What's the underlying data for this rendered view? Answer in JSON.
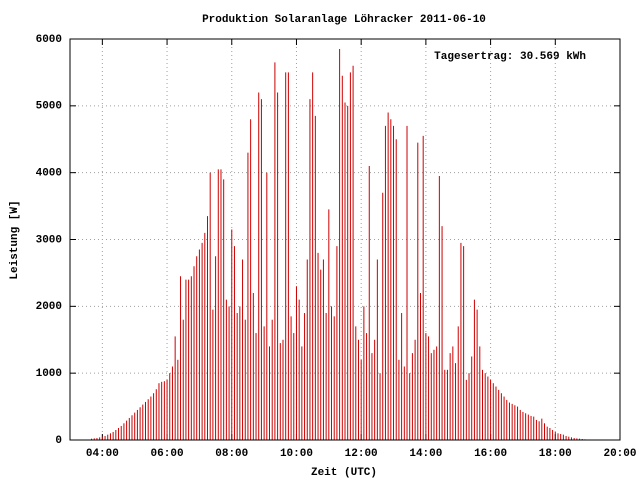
{
  "chart_data": {
    "type": "impulse",
    "title": "Produktion Solaranlage Löhracker 2011-06-10",
    "annotation": "Tagesertrag: 30.569 kWh",
    "xlabel": "Zeit (UTC)",
    "ylabel": "Leistung [W]",
    "color": "#cc0000",
    "grid": true,
    "xlim": [
      "03:00",
      "20:00"
    ],
    "xticks": [
      "04:00",
      "06:00",
      "08:00",
      "10:00",
      "12:00",
      "14:00",
      "16:00",
      "18:00",
      "20:00"
    ],
    "ylim": [
      0,
      6000
    ],
    "yticks": [
      0,
      1000,
      2000,
      3000,
      4000,
      5000,
      6000
    ],
    "x": [
      "03:40",
      "03:45",
      "03:50",
      "03:55",
      "04:00",
      "04:05",
      "04:10",
      "04:15",
      "04:20",
      "04:25",
      "04:30",
      "04:35",
      "04:40",
      "04:45",
      "04:50",
      "04:55",
      "05:00",
      "05:05",
      "05:10",
      "05:15",
      "05:20",
      "05:25",
      "05:30",
      "05:35",
      "05:40",
      "05:45",
      "05:50",
      "05:55",
      "06:00",
      "06:05",
      "06:10",
      "06:15",
      "06:20",
      "06:25",
      "06:30",
      "06:35",
      "06:40",
      "06:45",
      "06:50",
      "06:55",
      "07:00",
      "07:05",
      "07:10",
      "07:15",
      "07:20",
      "07:25",
      "07:30",
      "07:35",
      "07:40",
      "07:45",
      "07:50",
      "07:55",
      "08:00",
      "08:05",
      "08:10",
      "08:15",
      "08:20",
      "08:25",
      "08:30",
      "08:35",
      "08:40",
      "08:45",
      "08:50",
      "08:55",
      "09:00",
      "09:05",
      "09:10",
      "09:15",
      "09:20",
      "09:25",
      "09:30",
      "09:35",
      "09:40",
      "09:45",
      "09:50",
      "09:55",
      "10:00",
      "10:05",
      "10:10",
      "10:15",
      "10:20",
      "10:25",
      "10:30",
      "10:35",
      "10:40",
      "10:45",
      "10:50",
      "10:55",
      "11:00",
      "11:05",
      "11:10",
      "11:15",
      "11:20",
      "11:25",
      "11:30",
      "11:35",
      "11:40",
      "11:45",
      "11:50",
      "11:55",
      "12:00",
      "12:05",
      "12:10",
      "12:15",
      "12:20",
      "12:25",
      "12:30",
      "12:35",
      "12:40",
      "12:45",
      "12:50",
      "12:55",
      "13:00",
      "13:05",
      "13:10",
      "13:15",
      "13:20",
      "13:25",
      "13:30",
      "13:35",
      "13:40",
      "13:45",
      "13:50",
      "13:55",
      "14:00",
      "14:05",
      "14:10",
      "14:15",
      "14:20",
      "14:25",
      "14:30",
      "14:35",
      "14:40",
      "14:45",
      "14:50",
      "14:55",
      "15:00",
      "15:05",
      "15:10",
      "15:15",
      "15:20",
      "15:25",
      "15:30",
      "15:35",
      "15:40",
      "15:45",
      "15:50",
      "15:55",
      "16:00",
      "16:05",
      "16:10",
      "16:15",
      "16:20",
      "16:25",
      "16:30",
      "16:35",
      "16:40",
      "16:45",
      "16:50",
      "16:55",
      "17:00",
      "17:05",
      "17:10",
      "17:15",
      "17:20",
      "17:25",
      "17:30",
      "17:35",
      "17:40",
      "17:45",
      "17:50",
      "17:55",
      "18:00",
      "18:05",
      "18:10",
      "18:15",
      "18:20",
      "18:25",
      "18:30",
      "18:35",
      "18:40",
      "18:45",
      "18:50",
      "18:55",
      "19:00",
      "19:05"
    ],
    "values": [
      20,
      25,
      30,
      40,
      50,
      60,
      80,
      100,
      120,
      150,
      180,
      210,
      250,
      290,
      330,
      370,
      410,
      450,
      490,
      530,
      570,
      610,
      650,
      700,
      760,
      850,
      870,
      880,
      900,
      1000,
      1100,
      1550,
      1200,
      2450,
      1800,
      2400,
      2400,
      2450,
      2600,
      2750,
      2850,
      2950,
      3100,
      3350,
      4000,
      1950,
      2750,
      4050,
      4050,
      3900,
      2100,
      2000,
      3150,
      2900,
      1900,
      2000,
      2700,
      1800,
      4300,
      4800,
      2200,
      1600,
      5200,
      5100,
      1700,
      4000,
      1400,
      1800,
      5650,
      5200,
      1450,
      1500,
      5500,
      5500,
      1850,
      1600,
      2300,
      2100,
      1400,
      1900,
      2700,
      5100,
      5500,
      4850,
      2800,
      2550,
      2700,
      1900,
      3450,
      2000,
      1850,
      2900,
      5850,
      5450,
      5050,
      5000,
      5500,
      5600,
      1700,
      1500,
      1200,
      2000,
      1600,
      4100,
      1300,
      1500,
      2700,
      1000,
      3700,
      4700,
      4900,
      4800,
      4700,
      4500,
      1200,
      1900,
      1100,
      4700,
      1000,
      1300,
      1500,
      4450,
      2200,
      4550,
      1600,
      1550,
      1300,
      1350,
      1400,
      3950,
      3200,
      1050,
      1050,
      1300,
      1400,
      1150,
      1700,
      2950,
      2900,
      900,
      1000,
      1250,
      2100,
      1950,
      1400,
      1050,
      1000,
      950,
      900,
      850,
      800,
      750,
      700,
      650,
      600,
      560,
      540,
      520,
      500,
      450,
      420,
      400,
      380,
      360,
      350,
      300,
      280,
      320,
      250,
      200,
      180,
      150,
      120,
      100,
      90,
      80,
      60,
      50,
      40,
      30,
      25,
      20,
      15,
      10,
      5,
      3
    ]
  }
}
